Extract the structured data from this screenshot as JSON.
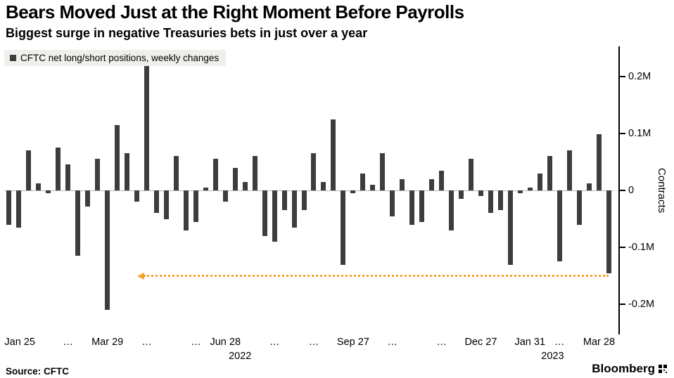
{
  "header": {
    "title": "Bears Moved Just at the Right Moment Before Payrolls",
    "subtitle": "Biggest surge in negative Treasuries bets in just over a year"
  },
  "legend": {
    "label": "CFTC net long/short positions, weekly changes",
    "marker_color": "#3d3d3d"
  },
  "footer": {
    "source": "Source: CFTC",
    "brand": "Bloomberg"
  },
  "colors": {
    "bar": "#3d3d3d",
    "annotation": "#F7A02B",
    "axis": "#000000"
  },
  "chart_data": {
    "type": "bar",
    "title": "Bears Moved Just at the Right Moment Before Payrolls",
    "subtitle": "Biggest surge in negative Treasuries bets in just over a year",
    "series_name": "CFTC net long/short positions, weekly changes",
    "xlabel": "",
    "ylabel": "Contracts",
    "unit": "M (millions of contracts)",
    "ylim": [
      -0.2525,
      0.2525
    ],
    "grid": false,
    "legend_position": "top-left",
    "x_description": "weekly observations, Jan 25 2022 through Mar 28 2023",
    "y_ticks": [
      {
        "value": 0.2,
        "label": "0.2M"
      },
      {
        "value": 0.1,
        "label": "0.1M"
      },
      {
        "value": 0,
        "label": "0"
      },
      {
        "value": -0.1,
        "label": "-0.1M"
      },
      {
        "value": -0.2,
        "label": "-0.2M"
      }
    ],
    "x_ticks": [
      {
        "index": 0,
        "label": "Jan 25"
      },
      {
        "index": 6,
        "label": "…"
      },
      {
        "index": 10,
        "label": "Mar 29"
      },
      {
        "index": 14,
        "label": "…"
      },
      {
        "index": 19,
        "label": "…"
      },
      {
        "index": 22,
        "label": "Jun 28"
      },
      {
        "index": 27,
        "label": "…"
      },
      {
        "index": 31,
        "label": "…"
      },
      {
        "index": 35,
        "label": "Sep 27"
      },
      {
        "index": 39,
        "label": "…"
      },
      {
        "index": 44,
        "label": "…"
      },
      {
        "index": 48,
        "label": "Dec 27"
      },
      {
        "index": 53,
        "label": "Jan 31"
      },
      {
        "index": 56,
        "label": "…"
      },
      {
        "index": 61,
        "label": "Mar 28"
      }
    ],
    "year_labels": [
      {
        "index": 23.5,
        "label": "2022"
      },
      {
        "index": 55.3,
        "label": "2023"
      }
    ],
    "values": [
      -0.06,
      -0.065,
      0.07,
      0.012,
      -0.005,
      0.075,
      0.045,
      -0.115,
      -0.028,
      0.055,
      -0.21,
      0.115,
      0.065,
      -0.02,
      0.22,
      -0.04,
      -0.05,
      0.06,
      -0.07,
      -0.055,
      0.005,
      0.055,
      -0.02,
      0.04,
      0.015,
      0.06,
      -0.08,
      -0.09,
      -0.035,
      -0.065,
      -0.035,
      0.065,
      0.015,
      0.125,
      -0.13,
      -0.005,
      0.03,
      0.01,
      0.065,
      -0.045,
      0.02,
      -0.06,
      -0.055,
      0.02,
      0.035,
      -0.07,
      -0.015,
      0.055,
      -0.01,
      -0.04,
      -0.035,
      -0.13,
      -0.005,
      0.005,
      0.03,
      0.06,
      -0.125,
      0.07,
      -0.06,
      0.012,
      0.098,
      -0.145
    ],
    "annotation": {
      "type": "dotted-line-with-left-arrow",
      "color": "#F7A02B",
      "y_value": -0.148,
      "from_index": 13,
      "to_index": 61
    }
  }
}
